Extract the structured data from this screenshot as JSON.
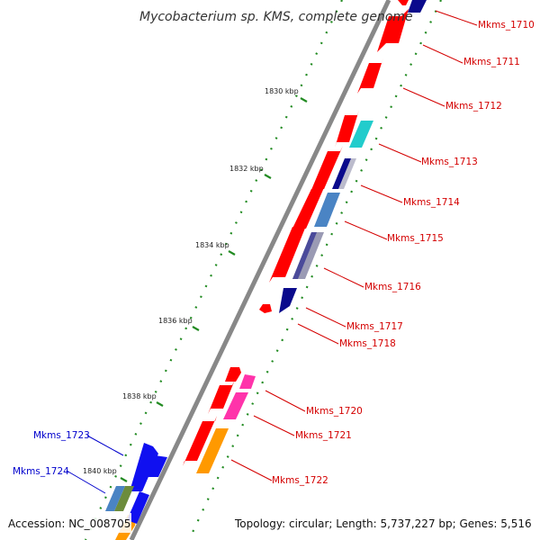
{
  "title": "Mycobacterium sp. KMS, complete genome",
  "accession": "Accession: NC_008705",
  "topology": "Topology: circular; Length: 5,737,227 bp; Genes: 5,516",
  "scale_labels": [
    "1830 kbp",
    "1832 kbp",
    "1834 kbp",
    "1836 kbp",
    "1838 kbp",
    "1840 kbp"
  ],
  "gene_labels_right": [
    "Mkms_1710",
    "Mkms_1711",
    "Mkms_1712",
    "Mkms_1713",
    "Mkms_1714",
    "Mkms_1715",
    "Mkms_1716",
    "Mkms_1717",
    "Mkms_1718",
    "Mkms_1720",
    "Mkms_1721",
    "Mkms_1722"
  ],
  "gene_labels_left": [
    "Mkms_1723",
    "Mkms_1724"
  ],
  "colors": {
    "red": "#ff0000",
    "dark_red": "#b40000",
    "cyan": "#22cccc",
    "navy": "#0a0a8c",
    "steel_blue": "#4a84c4",
    "slate": "#4a4a9a",
    "pink": "#ff33aa",
    "orange": "#ff9900",
    "blue": "#1010f0",
    "olive": "#6c8c3c",
    "label_red": "#d40000",
    "label_blue": "#0000cc",
    "backbone": "#888888",
    "scale_dots": "#228b22"
  }
}
